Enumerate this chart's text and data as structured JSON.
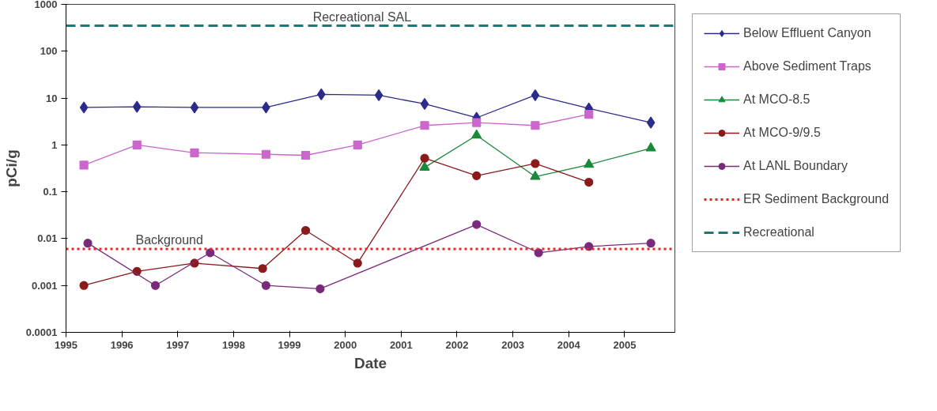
{
  "chart_data": {
    "type": "line",
    "xlabel": "Date",
    "ylabel": "pCi/g",
    "log": "y",
    "ylim": [
      0.0001,
      1000
    ],
    "yticks": [
      0.0001,
      0.001,
      0.01,
      0.1,
      1,
      10,
      100,
      1000
    ],
    "xlim": [
      1995,
      2005.9
    ],
    "xticks": [
      1995,
      1996,
      1997,
      1998,
      1999,
      2000,
      2001,
      2002,
      2003,
      2004,
      2005
    ],
    "grid": false,
    "legend": "right",
    "annotations": [
      {
        "text": "Recreational SAL",
        "x": 2000.3,
        "y": 350
      },
      {
        "text": "Background",
        "x": 1996.85,
        "y": 0.006
      }
    ],
    "series": [
      {
        "name": "Below Effluent Canyon",
        "color": "#2b2b8c",
        "marker": "diamond",
        "x": [
          1995.32,
          1996.27,
          1997.3,
          1998.58,
          1999.57,
          2000.6,
          2001.42,
          2002.35,
          2003.4,
          2004.36,
          2005.47
        ],
        "values": [
          6.3,
          6.5,
          6.3,
          6.3,
          12,
          11.5,
          7.5,
          3.8,
          11.5,
          6,
          3
        ]
      },
      {
        "name": "Above Sediment Traps",
        "color": "#cc66cc",
        "marker": "square",
        "x": [
          1995.32,
          1996.27,
          1997.3,
          1998.58,
          1999.29,
          2000.22,
          2001.42,
          2002.35,
          2003.4,
          2004.36
        ],
        "values": [
          0.37,
          1.0,
          0.68,
          0.63,
          0.6,
          1.0,
          2.6,
          3.0,
          2.6,
          4.5
        ]
      },
      {
        "name": "At MCO-8.5",
        "color": "#1a8a3a",
        "marker": "triangle",
        "x": [
          2001.42,
          2002.35,
          2003.4,
          2004.36,
          2005.47
        ],
        "values": [
          0.33,
          1.6,
          0.21,
          0.38,
          0.85
        ]
      },
      {
        "name": "At MCO-9/9.5",
        "color": "#8b1a1a",
        "marker": "circle",
        "x": [
          1995.32,
          1996.27,
          1997.3,
          1998.52,
          1999.29,
          2000.22,
          2001.42,
          2002.35,
          2003.4,
          2004.36
        ],
        "values": [
          0.001,
          0.002,
          0.003,
          0.0023,
          0.015,
          0.003,
          0.52,
          0.22,
          0.4,
          0.16
        ]
      },
      {
        "name": "At LANL Boundary",
        "color": "#7b2a7b",
        "marker": "circle",
        "x": [
          1995.39,
          1996.6,
          1997.58,
          1998.58,
          1999.55,
          2002.35,
          2003.46,
          2004.36,
          2005.47
        ],
        "values": [
          0.008,
          0.001,
          0.005,
          0.001,
          0.00085,
          0.02,
          0.005,
          0.0068,
          0.008
        ]
      },
      {
        "name": "ER Sediment Background",
        "color": "#ee2222",
        "marker": "none",
        "line_style": "dotted",
        "x": [
          1995,
          2005.9
        ],
        "values": [
          0.006,
          0.006
        ]
      },
      {
        "name": "Recreational",
        "color": "#1a7a7a",
        "marker": "none",
        "line_style": "dashed",
        "x": [
          1995,
          2005.9
        ],
        "values": [
          350,
          350
        ]
      }
    ]
  }
}
